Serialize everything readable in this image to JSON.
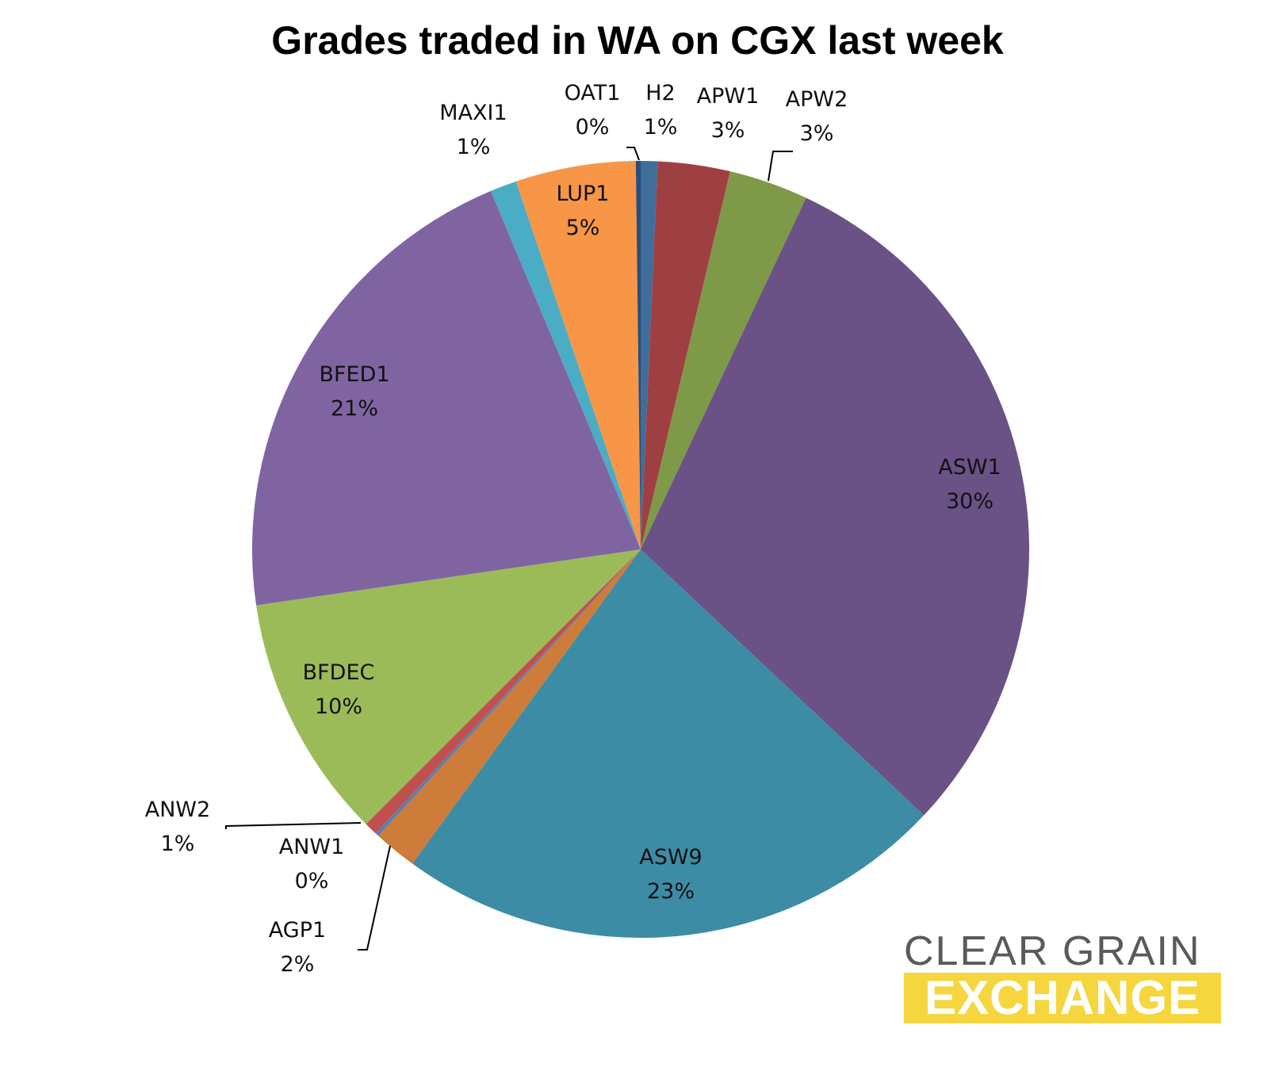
{
  "chart_data": {
    "type": "pie",
    "title": "Grades traded in WA on CGX last week",
    "start_angle_deg": 0,
    "direction": "clockwise",
    "slices": [
      {
        "label": "H2",
        "value": 0.7,
        "pct_label": "1%",
        "color": "#3f6d9c"
      },
      {
        "label": "APW1",
        "value": 3.0,
        "pct_label": "3%",
        "color": "#9e4042"
      },
      {
        "label": "APW2",
        "value": 3.3,
        "pct_label": "3%",
        "color": "#7e9a48"
      },
      {
        "label": "ASW1",
        "value": 30.0,
        "pct_label": "30%",
        "color": "#6a5186"
      },
      {
        "label": "ASW9",
        "value": 23.0,
        "pct_label": "23%",
        "color": "#3d8ca5"
      },
      {
        "label": "AGP1",
        "value": 1.8,
        "pct_label": "2%",
        "color": "#cd7c39"
      },
      {
        "label": "ANW1",
        "value": 0.15,
        "pct_label": "0%",
        "color": "#5b7fb0"
      },
      {
        "label": "ANW2",
        "value": 0.55,
        "pct_label": "1%",
        "color": "#c0504d"
      },
      {
        "label": "BFDEC",
        "value": 10.2,
        "pct_label": "10%",
        "color": "#9bbb59"
      },
      {
        "label": "BFED1",
        "value": 21.0,
        "pct_label": "21%",
        "color": "#8064a2"
      },
      {
        "label": "MAXI1",
        "value": 1.1,
        "pct_label": "1%",
        "color": "#4bacc6"
      },
      {
        "label": "LUP1",
        "value": 5.0,
        "pct_label": "5%",
        "color": "#f79646"
      },
      {
        "label": "OAT1",
        "value": 0.2,
        "pct_label": "0%",
        "color": "#2c4d75"
      }
    ]
  },
  "logo": {
    "line1": "CLEAR GRAIN",
    "line2": "EXCHANGE"
  }
}
